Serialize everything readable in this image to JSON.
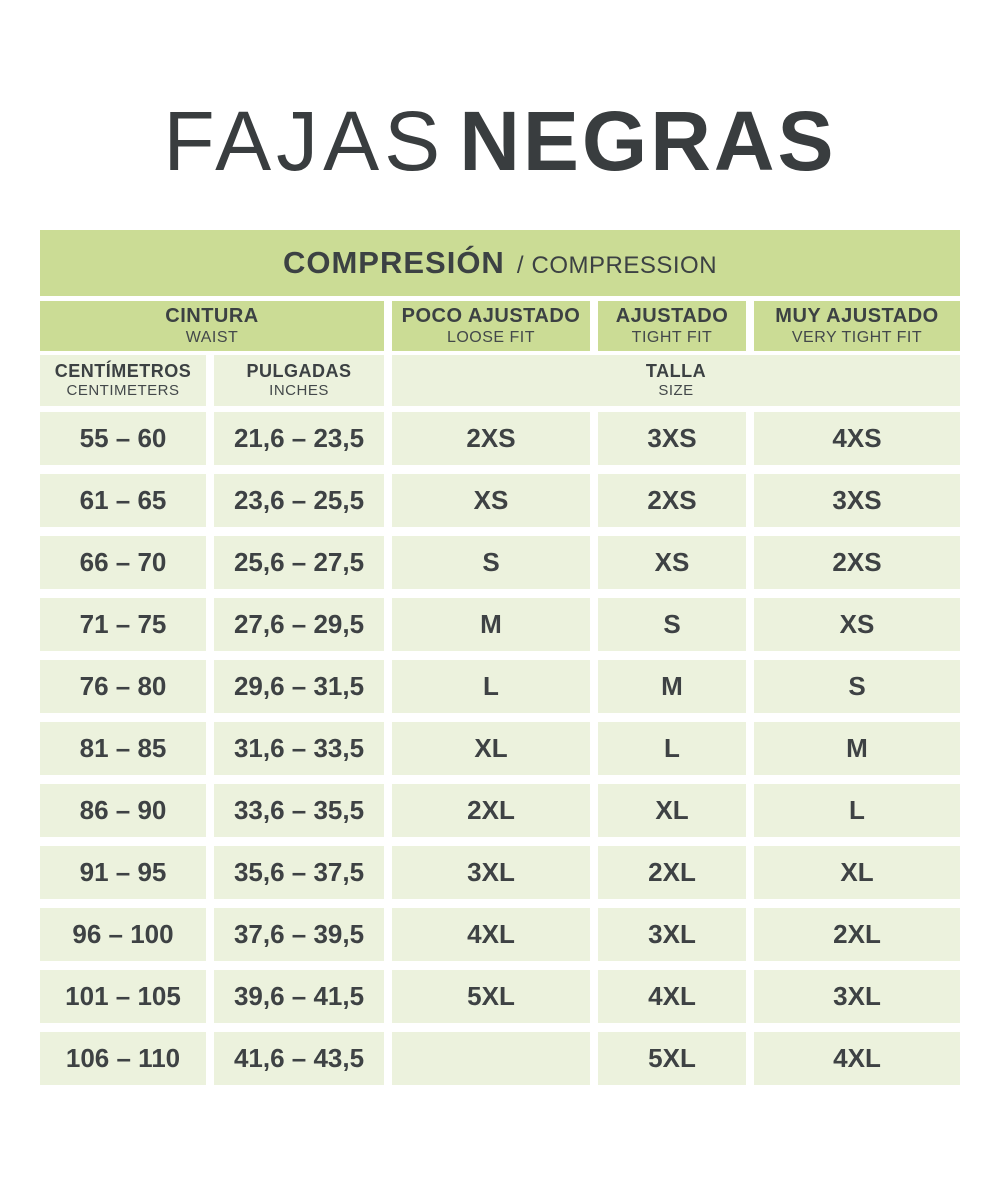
{
  "title": {
    "light": "FAJAS",
    "bold": "NEGRAS"
  },
  "banner": {
    "primary": "COMPRESIÓN",
    "separator": "/",
    "secondary": "COMPRESSION"
  },
  "headers": {
    "waist_es": "CINTURA",
    "waist_en": "WAIST",
    "loose_es": "POCO AJUSTADO",
    "loose_en": "LOOSE FIT",
    "tight_es": "AJUSTADO",
    "tight_en": "TIGHT FIT",
    "very_tight_es": "MUY AJUSTADO",
    "very_tight_en": "VERY TIGHT FIT",
    "cm_es": "CENTÍMETROS",
    "cm_en": "CENTIMETERS",
    "in_es": "PULGADAS",
    "in_en": "INCHES",
    "size_es": "TALLA",
    "size_en": "SIZE"
  },
  "colors": {
    "header_green": "#cbdc95",
    "cell_green": "#ecf2dd",
    "text_dark": "#3e4244",
    "background": "#ffffff"
  },
  "chart_data": {
    "type": "table",
    "title": "FAJAS NEGRAS",
    "banner": "COMPRESIÓN / COMPRESSION",
    "columns": [
      "CINTURA / WAIST — CENTÍMETROS / CENTIMETERS",
      "CINTURA / WAIST — PULGADAS / INCHES",
      "TALLA / SIZE — POCO AJUSTADO / LOOSE FIT",
      "TALLA / SIZE — AJUSTADO / TIGHT FIT",
      "TALLA / SIZE — MUY AJUSTADO / VERY TIGHT FIT"
    ],
    "rows": [
      [
        "55 – 60",
        "21,6 – 23,5",
        "2XS",
        "3XS",
        "4XS"
      ],
      [
        "61 – 65",
        "23,6 – 25,5",
        "XS",
        "2XS",
        "3XS"
      ],
      [
        "66 – 70",
        "25,6 – 27,5",
        "S",
        "XS",
        "2XS"
      ],
      [
        "71 – 75",
        "27,6 – 29,5",
        "M",
        "S",
        "XS"
      ],
      [
        "76 – 80",
        "29,6 – 31,5",
        "L",
        "M",
        "S"
      ],
      [
        "81 – 85",
        "31,6 – 33,5",
        "XL",
        "L",
        "M"
      ],
      [
        "86 – 90",
        "33,6 – 35,5",
        "2XL",
        "XL",
        "L"
      ],
      [
        "91 – 95",
        "35,6 – 37,5",
        "3XL",
        "2XL",
        "XL"
      ],
      [
        "96 – 100",
        "37,6 – 39,5",
        "4XL",
        "3XL",
        "2XL"
      ],
      [
        "101 – 105",
        "39,6 – 41,5",
        "5XL",
        "4XL",
        "3XL"
      ],
      [
        "106 – 110",
        "41,6 – 43,5",
        "",
        "5XL",
        "4XL"
      ]
    ]
  }
}
